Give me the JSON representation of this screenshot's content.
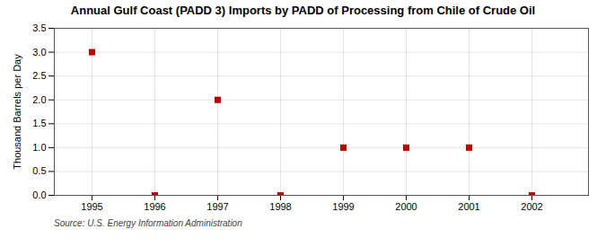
{
  "chart_data": {
    "type": "scatter",
    "title": "Annual Gulf Coast (PADD 3) Imports by PADD of Processing from Chile of Crude Oil",
    "y_label": "Thousand Barrels per Day",
    "source": "Source: U.S. Energy Information Administration",
    "x": [
      1995,
      1996,
      1997,
      1998,
      1999,
      2000,
      2001,
      2002
    ],
    "values": [
      3.0,
      0.0,
      2.0,
      0.0,
      1.0,
      1.0,
      1.0,
      0.0
    ],
    "xlim": [
      1994.4,
      2002.9
    ],
    "ylim": [
      0.0,
      3.5
    ],
    "xticks": [
      1995,
      1996,
      1997,
      1998,
      1999,
      2000,
      2001,
      2002
    ],
    "yticks": [
      {
        "value": 0.0,
        "label": "0.0"
      },
      {
        "value": 0.5,
        "label": "0.5"
      },
      {
        "value": 1.0,
        "label": "1.0"
      },
      {
        "value": 1.5,
        "label": "1.5"
      },
      {
        "value": 2.0,
        "label": "2.0"
      },
      {
        "value": 2.5,
        "label": "2.5"
      },
      {
        "value": 3.0,
        "label": "3.0"
      },
      {
        "value": 3.5,
        "label": "3.5"
      }
    ],
    "color": "#bb0000",
    "marker": "square",
    "grid": true
  }
}
